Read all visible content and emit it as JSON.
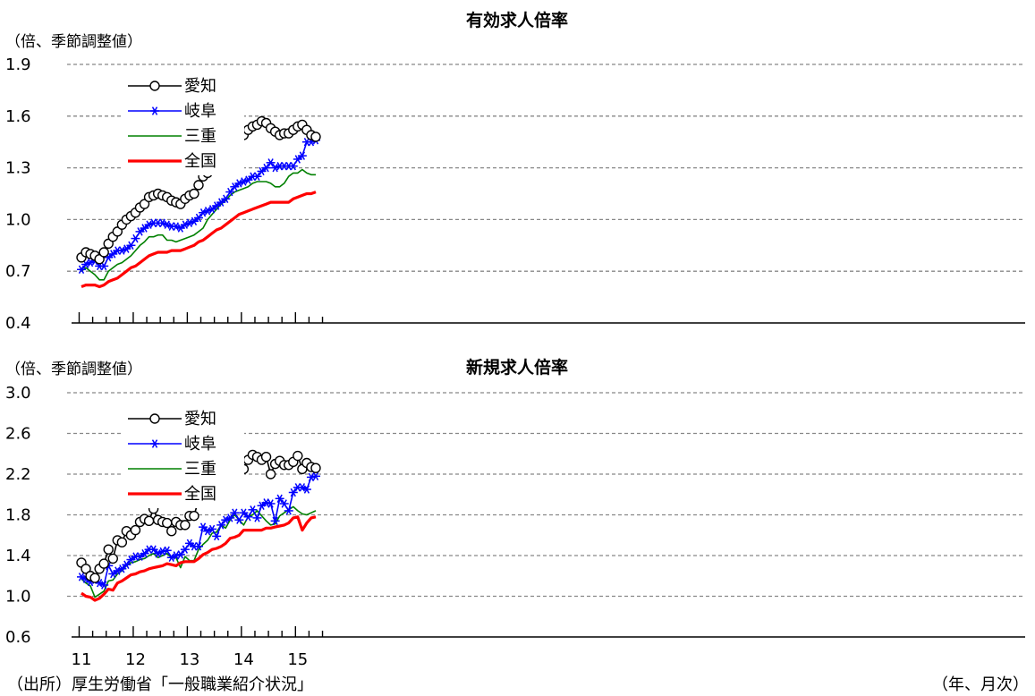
{
  "source_note": "（出所）厚生労働省「一般職業紹介状況」",
  "x_unit_label": "（年、月次）",
  "colors": {
    "aichi": "#000000",
    "gifu": "#0000ff",
    "mie": "#008000",
    "national": "#ff0000"
  },
  "chart_data": [
    {
      "type": "line",
      "title": "有効求人倍率",
      "ylabel": "（倍、季節調整値）",
      "ylim": [
        0.4,
        1.9
      ],
      "yticks": [
        "0.4",
        "0.7",
        "1.0",
        "1.3",
        "1.6",
        "1.9"
      ],
      "grid": true,
      "legend": "top-left",
      "x_start": "2011-01",
      "series": [
        {
          "name": "愛知",
          "marker": "circle",
          "values": [
            0.78,
            0.81,
            0.8,
            0.79,
            0.77,
            0.81,
            0.86,
            0.9,
            0.93,
            0.97,
            1.0,
            1.02,
            1.04,
            1.07,
            1.09,
            1.13,
            1.14,
            1.15,
            1.14,
            1.13,
            1.11,
            1.1,
            1.09,
            1.12,
            1.14,
            1.15,
            1.2,
            1.25,
            1.27,
            1.3,
            1.33,
            1.35,
            1.37,
            1.4,
            1.44,
            1.48,
            1.49,
            1.52,
            1.54,
            1.55,
            1.57,
            1.56,
            1.53,
            1.51,
            1.49,
            1.5,
            1.5,
            1.52,
            1.54,
            1.55,
            1.52,
            1.49,
            1.48
          ]
        },
        {
          "name": "岐阜",
          "marker": "star",
          "values": [
            0.71,
            0.74,
            0.75,
            0.76,
            0.73,
            0.73,
            0.78,
            0.8,
            0.82,
            0.82,
            0.83,
            0.85,
            0.89,
            0.93,
            0.95,
            0.97,
            0.98,
            0.98,
            0.98,
            0.97,
            0.96,
            0.96,
            0.95,
            0.97,
            0.98,
            0.99,
            1.01,
            1.04,
            1.05,
            1.06,
            1.08,
            1.1,
            1.12,
            1.16,
            1.19,
            1.21,
            1.22,
            1.23,
            1.25,
            1.25,
            1.28,
            1.3,
            1.33,
            1.3,
            1.31,
            1.31,
            1.31,
            1.31,
            1.35,
            1.37,
            1.45,
            1.45,
            1.46
          ]
        },
        {
          "name": "三重",
          "marker": "none",
          "values": [
            0.7,
            0.72,
            0.7,
            0.68,
            0.65,
            0.65,
            0.7,
            0.72,
            0.74,
            0.75,
            0.77,
            0.79,
            0.82,
            0.85,
            0.87,
            0.9,
            0.9,
            0.91,
            0.91,
            0.88,
            0.88,
            0.87,
            0.88,
            0.89,
            0.9,
            0.91,
            0.93,
            0.95,
            1.0,
            1.03,
            1.06,
            1.09,
            1.11,
            1.14,
            1.16,
            1.17,
            1.18,
            1.19,
            1.21,
            1.22,
            1.22,
            1.22,
            1.21,
            1.19,
            1.19,
            1.21,
            1.25,
            1.27,
            1.27,
            1.29,
            1.27,
            1.26,
            1.26
          ]
        },
        {
          "name": "全国",
          "marker": "none",
          "values": [
            0.61,
            0.62,
            0.62,
            0.62,
            0.61,
            0.62,
            0.64,
            0.65,
            0.66,
            0.68,
            0.7,
            0.72,
            0.73,
            0.75,
            0.77,
            0.79,
            0.8,
            0.81,
            0.81,
            0.81,
            0.82,
            0.82,
            0.82,
            0.83,
            0.84,
            0.85,
            0.87,
            0.88,
            0.9,
            0.92,
            0.94,
            0.95,
            0.97,
            0.99,
            1.01,
            1.03,
            1.04,
            1.05,
            1.06,
            1.07,
            1.08,
            1.09,
            1.1,
            1.1,
            1.1,
            1.1,
            1.1,
            1.12,
            1.13,
            1.14,
            1.15,
            1.15,
            1.16
          ]
        }
      ]
    },
    {
      "type": "line",
      "title": "新規求人倍率",
      "ylabel": "（倍、季節調整値）",
      "ylim": [
        0.6,
        3.0
      ],
      "yticks": [
        "0.6",
        "1.0",
        "1.4",
        "1.8",
        "2.2",
        "2.6",
        "3.0"
      ],
      "xticks": [
        "11",
        "12",
        "13",
        "14",
        "15"
      ],
      "grid": true,
      "legend": "top-left",
      "x_start": "2011-01",
      "series": [
        {
          "name": "愛知",
          "marker": "circle",
          "values": [
            1.33,
            1.27,
            1.2,
            1.18,
            1.27,
            1.32,
            1.46,
            1.37,
            1.55,
            1.53,
            1.64,
            1.6,
            1.65,
            1.73,
            1.76,
            1.74,
            1.86,
            1.75,
            1.73,
            1.72,
            1.64,
            1.73,
            1.7,
            1.7,
            1.79,
            1.79,
            1.95,
            2.02,
            1.99,
            2.04,
            2.13,
            2.02,
            2.18,
            2.2,
            2.21,
            2.32,
            2.25,
            2.34,
            2.39,
            2.37,
            2.34,
            2.37,
            2.2,
            2.3,
            2.33,
            2.29,
            2.29,
            2.32,
            2.38,
            2.25,
            2.31,
            2.27,
            2.26
          ]
        },
        {
          "name": "岐阜",
          "marker": "star",
          "values": [
            1.19,
            1.17,
            1.14,
            1.16,
            1.13,
            1.11,
            1.3,
            1.22,
            1.25,
            1.27,
            1.31,
            1.36,
            1.39,
            1.39,
            1.42,
            1.46,
            1.46,
            1.42,
            1.44,
            1.45,
            1.38,
            1.4,
            1.41,
            1.46,
            1.52,
            1.49,
            1.49,
            1.68,
            1.64,
            1.66,
            1.59,
            1.7,
            1.75,
            1.77,
            1.82,
            1.75,
            1.82,
            1.78,
            1.85,
            1.77,
            1.89,
            1.92,
            1.91,
            1.74,
            1.96,
            1.91,
            1.84,
            2.02,
            2.07,
            2.07,
            2.05,
            2.17,
            2.18
          ]
        },
        {
          "name": "三重",
          "marker": "none",
          "values": [
            1.17,
            1.13,
            1.1,
            0.99,
            1.02,
            1.05,
            1.15,
            1.16,
            1.22,
            1.25,
            1.3,
            1.33,
            1.34,
            1.36,
            1.37,
            1.4,
            1.42,
            1.38,
            1.4,
            1.42,
            1.38,
            1.38,
            1.28,
            1.39,
            1.35,
            1.35,
            1.46,
            1.51,
            1.55,
            1.62,
            1.63,
            1.7,
            1.67,
            1.75,
            1.8,
            1.75,
            1.7,
            1.78,
            1.8,
            1.84,
            1.79,
            1.74,
            1.7,
            1.71,
            1.79,
            1.82,
            1.85,
            1.88,
            1.84,
            1.81,
            1.8,
            1.82,
            1.84
          ]
        },
        {
          "name": "全国",
          "marker": "none",
          "values": [
            1.03,
            1.0,
            0.99,
            0.96,
            0.98,
            1.02,
            1.07,
            1.06,
            1.13,
            1.15,
            1.18,
            1.21,
            1.22,
            1.24,
            1.25,
            1.27,
            1.28,
            1.29,
            1.3,
            1.32,
            1.31,
            1.3,
            1.33,
            1.34,
            1.34,
            1.34,
            1.37,
            1.41,
            1.43,
            1.46,
            1.47,
            1.49,
            1.52,
            1.57,
            1.58,
            1.6,
            1.65,
            1.65,
            1.65,
            1.65,
            1.65,
            1.67,
            1.67,
            1.68,
            1.69,
            1.7,
            1.72,
            1.77,
            1.78,
            1.65,
            1.72,
            1.77,
            1.78
          ]
        }
      ]
    }
  ]
}
